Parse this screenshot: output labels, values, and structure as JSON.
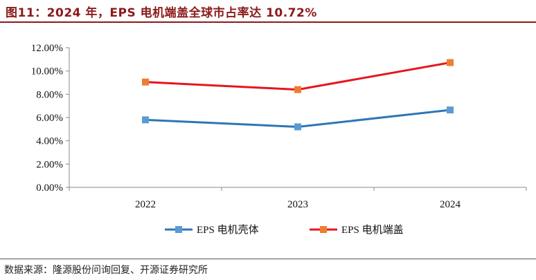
{
  "title": "图11：2024 年，EPS 电机端盖全球市占率达 10.72%",
  "source": "数据来源：隆源股份问询回复、开源证券研究所",
  "chart_data": {
    "type": "line",
    "categories": [
      "2022",
      "2023",
      "2024"
    ],
    "y_ticks": [
      "0.00%",
      "2.00%",
      "4.00%",
      "6.00%",
      "8.00%",
      "10.00%",
      "12.00%"
    ],
    "ylim": [
      0,
      12
    ],
    "y_unit": "%",
    "grid": false,
    "legend_position": "bottom",
    "series": [
      {
        "name": "EPS 电机壳体",
        "values": [
          5.8,
          5.2,
          6.65
        ],
        "color": "#2e75b6",
        "marker_color": "#5b9bd5"
      },
      {
        "name": "EPS 电机端盖",
        "values": [
          9.05,
          8.4,
          10.72
        ],
        "color": "#e8141c",
        "marker_color": "#ed7d31"
      }
    ]
  }
}
